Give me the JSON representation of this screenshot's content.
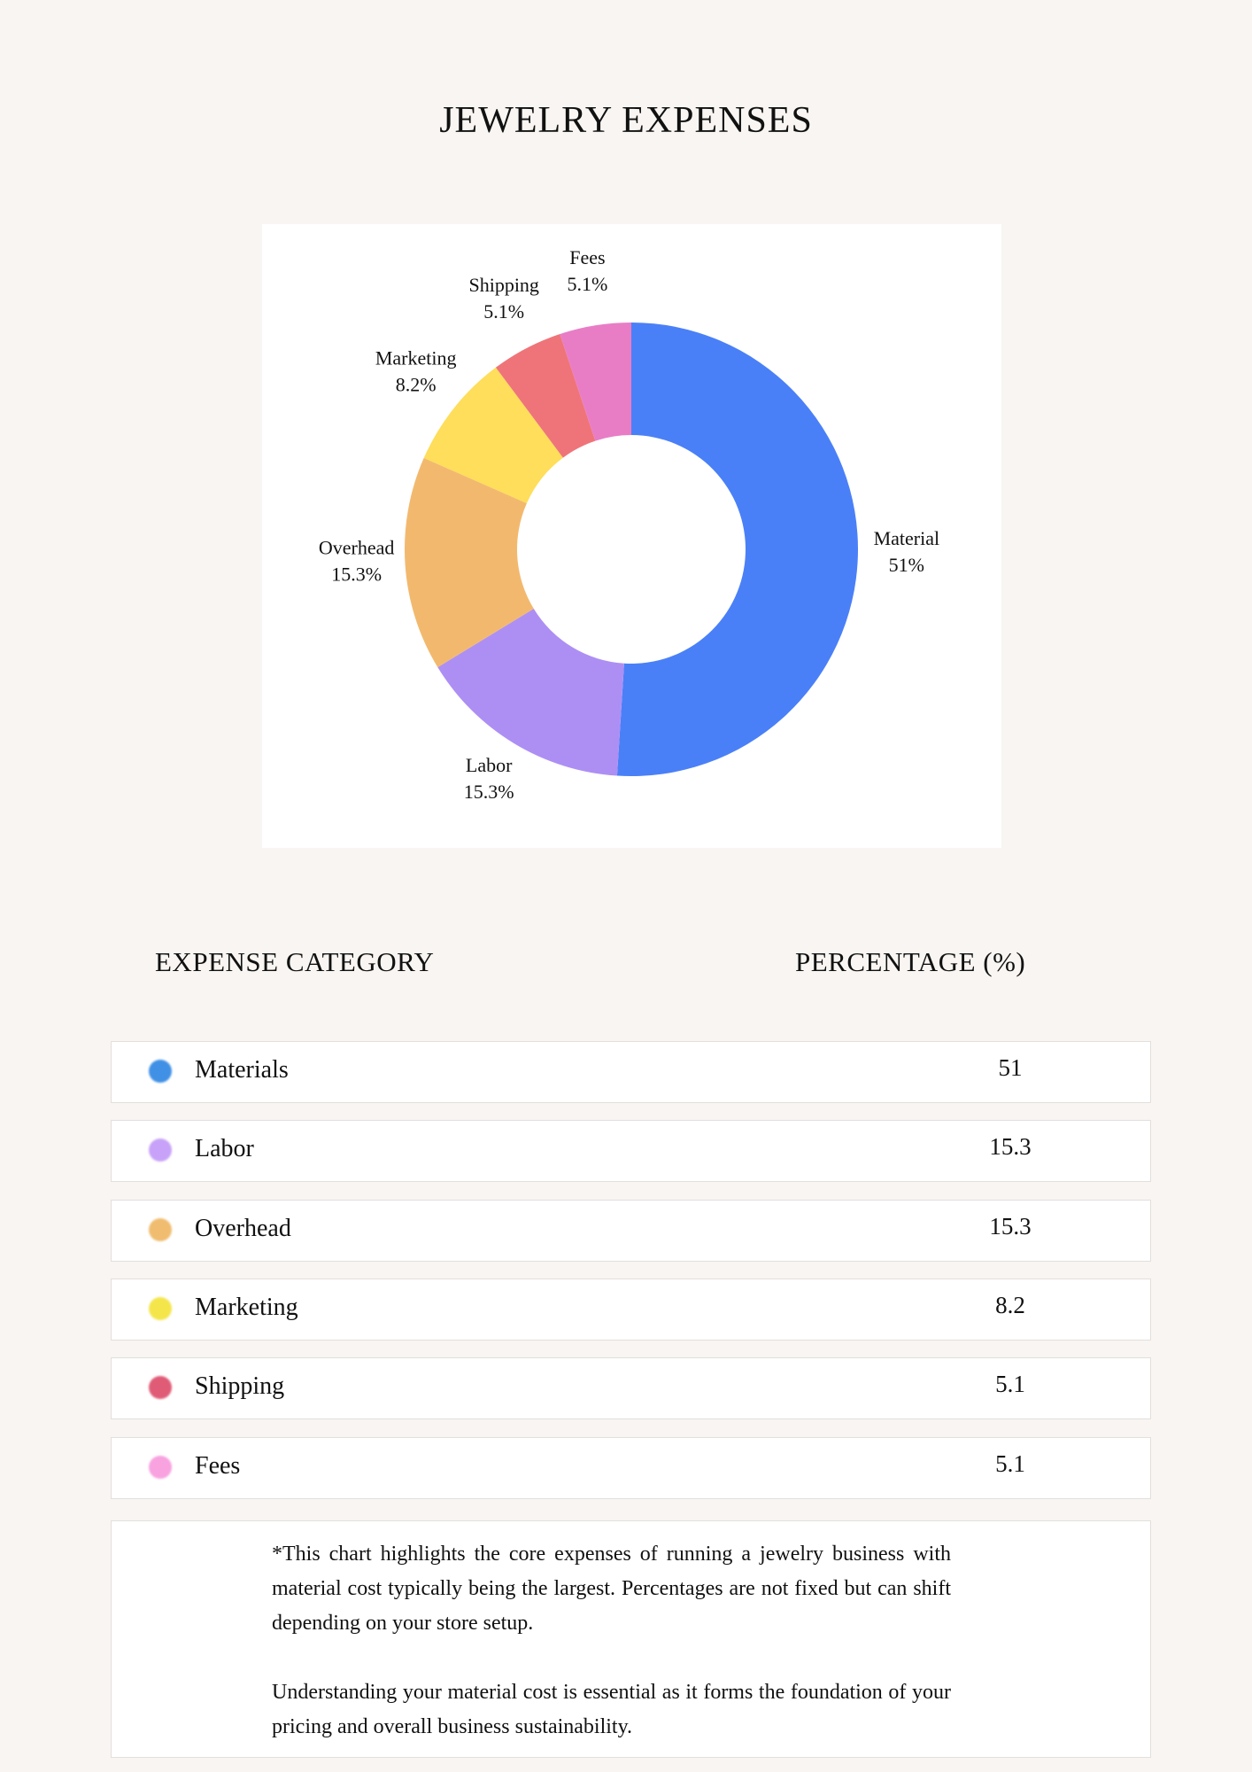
{
  "title": "JEWELRY EXPENSES",
  "chart_data": {
    "type": "donut",
    "categories": [
      "Material",
      "Labor",
      "Overhead",
      "Marketing",
      "Shipping",
      "Fees"
    ],
    "values": [
      51,
      15.3,
      15.3,
      8.2,
      5.1,
      5.1
    ],
    "value_labels": [
      "51%",
      "15.3%",
      "15.3%",
      "8.2%",
      "5.1%",
      "5.1%"
    ],
    "colors": [
      "#4a80f7",
      "#ad8ff4",
      "#f2b96e",
      "#fede5a",
      "#ef7479",
      "#e87dc6"
    ]
  },
  "table": {
    "header": [
      "EXPENSE CATEGORY",
      "PERCENTAGE (%)"
    ],
    "rows": [
      [
        "Materials",
        51
      ],
      [
        "Labor",
        15.3
      ],
      [
        "Overhead",
        15.3
      ],
      [
        "Marketing",
        8.2
      ],
      [
        "Shipping",
        5.1
      ],
      [
        "Fees",
        5.1
      ]
    ],
    "dot_colors": [
      "#4090e6",
      "#c8a2f8",
      "#f0bd70",
      "#f4e64a",
      "#e05c76",
      "#f8a2e0"
    ]
  },
  "note": [
    "*This chart highlights the core expenses of running a jewelry business with material cost typically being the largest. Percentages are not fixed but can shift depending on your store setup.",
    "Understanding your material cost is essential as it forms the foundation of your pricing and overall business sustainability."
  ]
}
